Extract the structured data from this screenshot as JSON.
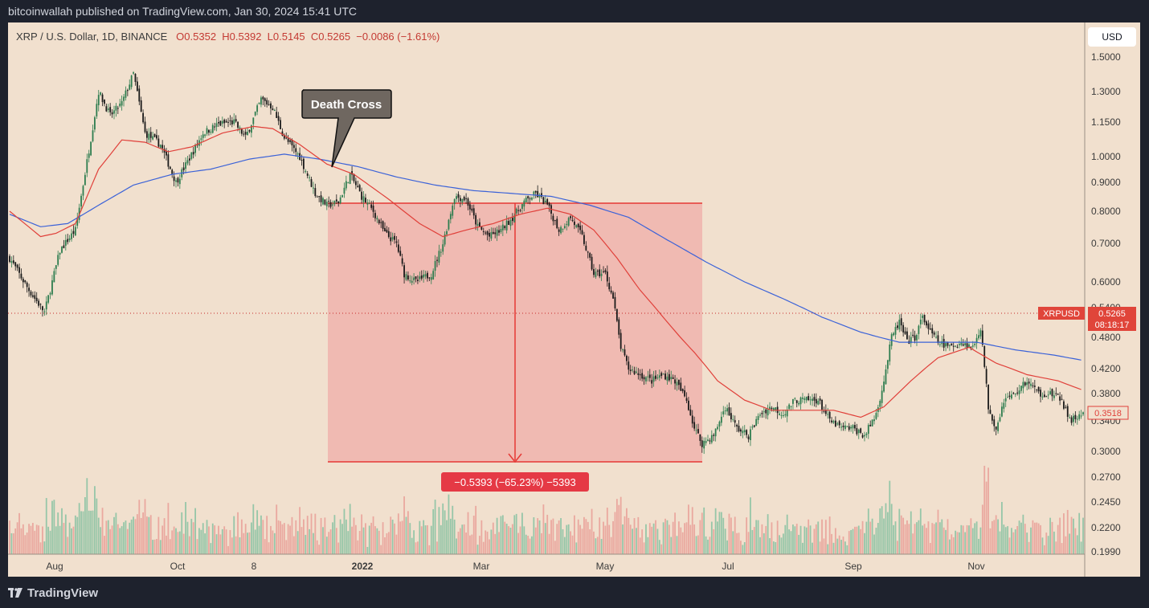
{
  "header": {
    "published": "bitcoinwallah published on TradingView.com, Jan 30, 2024 15:41 UTC"
  },
  "legend": {
    "symbol": "XRP / U.S. Dollar, 1D, BINANCE",
    "open": "O0.5352",
    "high": "H0.5392",
    "low": "L0.5145",
    "close": "C0.5265",
    "change": "−0.0086 (−1.61%)"
  },
  "currency_button": "USD",
  "footer": {
    "brand": "TradingView"
  },
  "annotation": {
    "callout": "Death Cross",
    "measure": "−0.5393 (−65.23%) −5393"
  },
  "price_labels": {
    "symbol_tag": "XRPUSD",
    "last_price": "0.5265",
    "countdown": "08:18:17",
    "ma_value": "0.3518"
  },
  "colors": {
    "background": "#f1e0ce",
    "up": "#2e7d4f",
    "down": "#1a1a1a",
    "ma_fast": "#e0403a",
    "ma_slow": "#3b62d8",
    "measure_fill": "#ef9a9a"
  },
  "chart_data": {
    "type": "candlestick",
    "y_scale": "log",
    "ylim": [
      0.199,
      1.6
    ],
    "x_ticks": [
      "Aug",
      "Oct",
      "8",
      "2022",
      "Mar",
      "May",
      "Jul",
      "Sep",
      "Nov"
    ],
    "y_ticks": [
      "1.5000",
      "1.3000",
      "1.1500",
      "1.0000",
      "0.9000",
      "0.8000",
      "0.7000",
      "0.6000",
      "0.5400",
      "0.4800",
      "0.4200",
      "0.3800",
      "0.3400",
      "0.3000",
      "0.2700",
      "0.2450",
      "0.2200",
      "0.1990"
    ],
    "close_path": [
      {
        "x": 0,
        "y": 0.66
      },
      {
        "x": 10,
        "y": 0.58
      },
      {
        "x": 18,
        "y": 0.53
      },
      {
        "x": 26,
        "y": 0.68
      },
      {
        "x": 34,
        "y": 0.74
      },
      {
        "x": 40,
        "y": 0.98
      },
      {
        "x": 46,
        "y": 1.3
      },
      {
        "x": 52,
        "y": 1.18
      },
      {
        "x": 58,
        "y": 1.24
      },
      {
        "x": 64,
        "y": 1.4
      },
      {
        "x": 70,
        "y": 1.1
      },
      {
        "x": 78,
        "y": 1.05
      },
      {
        "x": 86,
        "y": 0.9
      },
      {
        "x": 92,
        "y": 0.98
      },
      {
        "x": 100,
        "y": 1.1
      },
      {
        "x": 108,
        "y": 1.14
      },
      {
        "x": 116,
        "y": 1.15
      },
      {
        "x": 122,
        "y": 1.08
      },
      {
        "x": 130,
        "y": 1.26
      },
      {
        "x": 136,
        "y": 1.22
      },
      {
        "x": 142,
        "y": 1.08
      },
      {
        "x": 150,
        "y": 1.0
      },
      {
        "x": 158,
        "y": 0.86
      },
      {
        "x": 164,
        "y": 0.82
      },
      {
        "x": 170,
        "y": 0.83
      },
      {
        "x": 176,
        "y": 0.93
      },
      {
        "x": 182,
        "y": 0.85
      },
      {
        "x": 188,
        "y": 0.8
      },
      {
        "x": 194,
        "y": 0.73
      },
      {
        "x": 200,
        "y": 0.7
      },
      {
        "x": 204,
        "y": 0.62
      },
      {
        "x": 210,
        "y": 0.6
      },
      {
        "x": 218,
        "y": 0.62
      },
      {
        "x": 224,
        "y": 0.7
      },
      {
        "x": 230,
        "y": 0.85
      },
      {
        "x": 236,
        "y": 0.84
      },
      {
        "x": 242,
        "y": 0.75
      },
      {
        "x": 248,
        "y": 0.72
      },
      {
        "x": 254,
        "y": 0.74
      },
      {
        "x": 260,
        "y": 0.78
      },
      {
        "x": 266,
        "y": 0.83
      },
      {
        "x": 272,
        "y": 0.86
      },
      {
        "x": 278,
        "y": 0.82
      },
      {
        "x": 284,
        "y": 0.74
      },
      {
        "x": 290,
        "y": 0.78
      },
      {
        "x": 296,
        "y": 0.72
      },
      {
        "x": 302,
        "y": 0.62
      },
      {
        "x": 308,
        "y": 0.62
      },
      {
        "x": 312,
        "y": 0.56
      },
      {
        "x": 316,
        "y": 0.46
      },
      {
        "x": 320,
        "y": 0.42
      },
      {
        "x": 326,
        "y": 0.41
      },
      {
        "x": 332,
        "y": 0.4
      },
      {
        "x": 338,
        "y": 0.41
      },
      {
        "x": 344,
        "y": 0.4
      },
      {
        "x": 350,
        "y": 0.37
      },
      {
        "x": 354,
        "y": 0.33
      },
      {
        "x": 358,
        "y": 0.31
      },
      {
        "x": 364,
        "y": 0.32
      },
      {
        "x": 370,
        "y": 0.36
      },
      {
        "x": 376,
        "y": 0.33
      },
      {
        "x": 382,
        "y": 0.32
      },
      {
        "x": 388,
        "y": 0.35
      },
      {
        "x": 394,
        "y": 0.36
      },
      {
        "x": 400,
        "y": 0.35
      },
      {
        "x": 406,
        "y": 0.37
      },
      {
        "x": 412,
        "y": 0.37
      },
      {
        "x": 418,
        "y": 0.37
      },
      {
        "x": 424,
        "y": 0.34
      },
      {
        "x": 430,
        "y": 0.33
      },
      {
        "x": 436,
        "y": 0.33
      },
      {
        "x": 442,
        "y": 0.32
      },
      {
        "x": 448,
        "y": 0.35
      },
      {
        "x": 452,
        "y": 0.4
      },
      {
        "x": 456,
        "y": 0.48
      },
      {
        "x": 460,
        "y": 0.51
      },
      {
        "x": 464,
        "y": 0.47
      },
      {
        "x": 468,
        "y": 0.48
      },
      {
        "x": 472,
        "y": 0.52
      },
      {
        "x": 476,
        "y": 0.49
      },
      {
        "x": 480,
        "y": 0.47
      },
      {
        "x": 486,
        "y": 0.46
      },
      {
        "x": 492,
        "y": 0.47
      },
      {
        "x": 498,
        "y": 0.46
      },
      {
        "x": 502,
        "y": 0.5
      },
      {
        "x": 506,
        "y": 0.36
      },
      {
        "x": 510,
        "y": 0.33
      },
      {
        "x": 514,
        "y": 0.37
      },
      {
        "x": 520,
        "y": 0.38
      },
      {
        "x": 526,
        "y": 0.4
      },
      {
        "x": 532,
        "y": 0.38
      },
      {
        "x": 538,
        "y": 0.38
      },
      {
        "x": 544,
        "y": 0.37
      },
      {
        "x": 548,
        "y": 0.34
      },
      {
        "x": 552,
        "y": 0.345
      },
      {
        "x": 555,
        "y": 0.3518
      }
    ],
    "ma_fast": [
      {
        "x": 0,
        "y": 0.8
      },
      {
        "x": 16,
        "y": 0.72
      },
      {
        "x": 24,
        "y": 0.73
      },
      {
        "x": 34,
        "y": 0.76
      },
      {
        "x": 46,
        "y": 0.95
      },
      {
        "x": 58,
        "y": 1.07
      },
      {
        "x": 70,
        "y": 1.06
      },
      {
        "x": 82,
        "y": 1.02
      },
      {
        "x": 94,
        "y": 1.04
      },
      {
        "x": 110,
        "y": 1.1
      },
      {
        "x": 126,
        "y": 1.13
      },
      {
        "x": 136,
        "y": 1.12
      },
      {
        "x": 150,
        "y": 1.05
      },
      {
        "x": 164,
        "y": 0.97
      },
      {
        "x": 178,
        "y": 0.93
      },
      {
        "x": 196,
        "y": 0.84
      },
      {
        "x": 212,
        "y": 0.76
      },
      {
        "x": 224,
        "y": 0.72
      },
      {
        "x": 236,
        "y": 0.74
      },
      {
        "x": 250,
        "y": 0.76
      },
      {
        "x": 264,
        "y": 0.79
      },
      {
        "x": 278,
        "y": 0.81
      },
      {
        "x": 290,
        "y": 0.79
      },
      {
        "x": 302,
        "y": 0.74
      },
      {
        "x": 314,
        "y": 0.66
      },
      {
        "x": 326,
        "y": 0.58
      },
      {
        "x": 340,
        "y": 0.51
      },
      {
        "x": 354,
        "y": 0.45
      },
      {
        "x": 366,
        "y": 0.4
      },
      {
        "x": 380,
        "y": 0.37
      },
      {
        "x": 394,
        "y": 0.355
      },
      {
        "x": 410,
        "y": 0.355
      },
      {
        "x": 426,
        "y": 0.355
      },
      {
        "x": 440,
        "y": 0.345
      },
      {
        "x": 452,
        "y": 0.36
      },
      {
        "x": 466,
        "y": 0.4
      },
      {
        "x": 480,
        "y": 0.44
      },
      {
        "x": 496,
        "y": 0.46
      },
      {
        "x": 510,
        "y": 0.43
      },
      {
        "x": 526,
        "y": 0.41
      },
      {
        "x": 542,
        "y": 0.4
      },
      {
        "x": 555,
        "y": 0.385
      }
    ],
    "ma_slow": [
      {
        "x": 0,
        "y": 0.79
      },
      {
        "x": 16,
        "y": 0.75
      },
      {
        "x": 30,
        "y": 0.76
      },
      {
        "x": 46,
        "y": 0.82
      },
      {
        "x": 64,
        "y": 0.89
      },
      {
        "x": 84,
        "y": 0.93
      },
      {
        "x": 104,
        "y": 0.95
      },
      {
        "x": 124,
        "y": 0.99
      },
      {
        "x": 142,
        "y": 1.01
      },
      {
        "x": 160,
        "y": 0.99
      },
      {
        "x": 180,
        "y": 0.96
      },
      {
        "x": 200,
        "y": 0.92
      },
      {
        "x": 220,
        "y": 0.89
      },
      {
        "x": 240,
        "y": 0.87
      },
      {
        "x": 260,
        "y": 0.86
      },
      {
        "x": 280,
        "y": 0.85
      },
      {
        "x": 300,
        "y": 0.82
      },
      {
        "x": 320,
        "y": 0.78
      },
      {
        "x": 340,
        "y": 0.71
      },
      {
        "x": 360,
        "y": 0.65
      },
      {
        "x": 380,
        "y": 0.6
      },
      {
        "x": 400,
        "y": 0.56
      },
      {
        "x": 420,
        "y": 0.52
      },
      {
        "x": 440,
        "y": 0.49
      },
      {
        "x": 460,
        "y": 0.47
      },
      {
        "x": 480,
        "y": 0.47
      },
      {
        "x": 500,
        "y": 0.47
      },
      {
        "x": 520,
        "y": 0.455
      },
      {
        "x": 540,
        "y": 0.445
      },
      {
        "x": 555,
        "y": 0.435
      }
    ]
  }
}
